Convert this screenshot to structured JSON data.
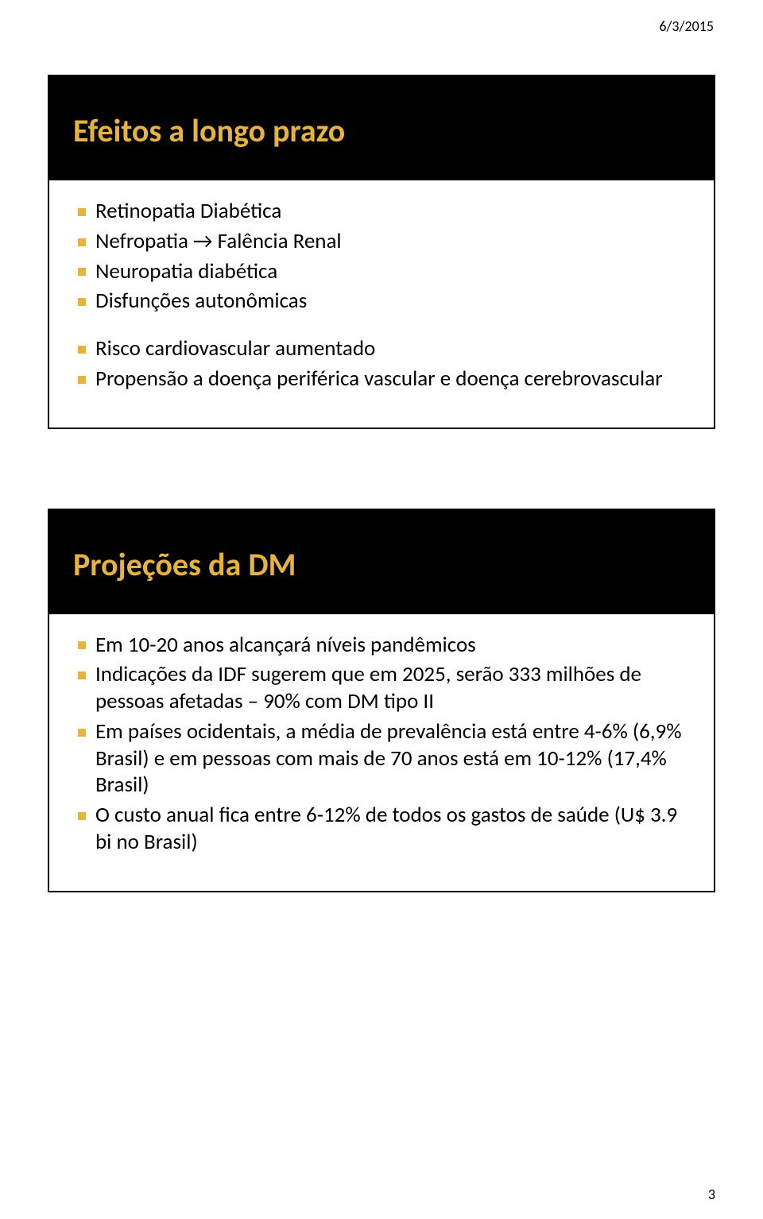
{
  "page": {
    "header_date": "6/3/2015",
    "page_number": "3"
  },
  "colors": {
    "accent": "#e8b33a",
    "slide_title_bg": "#000000",
    "slide_title_fg": "#e8b33a",
    "page_bg": "#ffffff",
    "body_text": "#000000",
    "bullet_marker": "#e8b33a",
    "slide_border": "#000000"
  },
  "typography": {
    "title_fontsize_pt": 30,
    "body_fontsize_pt": 20,
    "meta_fontsize_pt": 13
  },
  "slides": [
    {
      "title": "Efeitos a longo prazo",
      "groups": [
        [
          "Retinopatia Diabética",
          "Nefropatia → Falência Renal",
          "Neuropatia diabética",
          "Disfunções autonômicas"
        ],
        [
          "Risco cardiovascular aumentado",
          "Propensão a doença periférica vascular e doença cerebrovascular"
        ]
      ]
    },
    {
      "title": "Projeções da DM",
      "groups": [
        [
          "Em 10-20 anos alcançará níveis pandêmicos",
          "Indicações da IDF sugerem que em 2025, serão 333 milhões de pessoas afetadas – 90% com DM tipo II",
          "Em países ocidentais, a média de prevalência está entre 4-6% (6,9% Brasil) e em pessoas com mais de 70 anos está em 10-12% (17,4% Brasil)",
          "O custo anual fica entre 6-12% de todos os gastos de saúde (U$ 3.9 bi no Brasil)"
        ]
      ]
    }
  ]
}
